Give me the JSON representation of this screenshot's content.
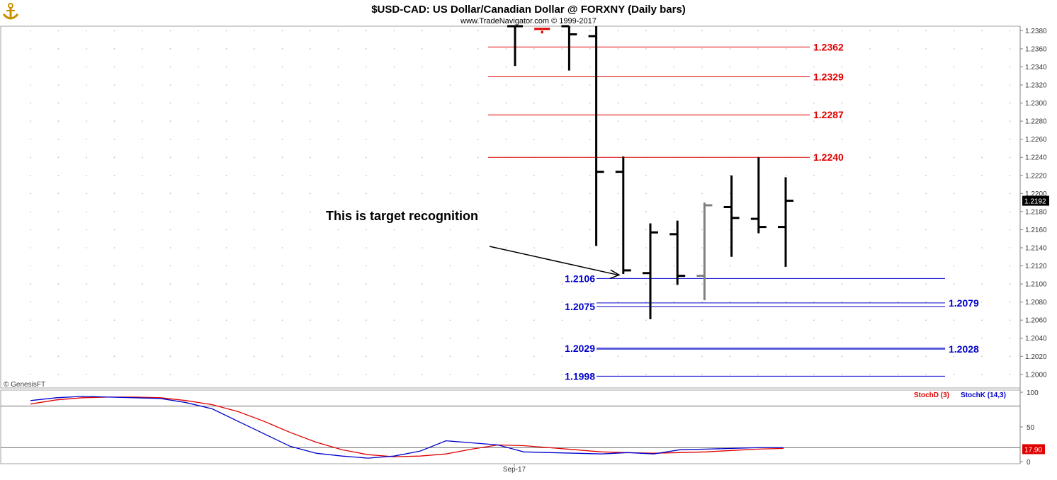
{
  "header": {
    "title": "$USD-CAD:  US Dollar/Canadian Dollar @ FORXNY  (Daily bars)",
    "copyright": "www.TradeNavigator.com © 1999-2017",
    "watermark": "© GenesisFT",
    "logo_icon": "anchor-logo-icon"
  },
  "chart_data": [
    {
      "type": "ohlc",
      "ylim": [
        1.1985,
        1.2385
      ],
      "y_ticks": [
        1.2,
        1.202,
        1.204,
        1.206,
        1.208,
        1.21,
        1.212,
        1.214,
        1.216,
        1.218,
        1.22,
        1.222,
        1.224,
        1.226,
        1.228,
        1.23,
        1.232,
        1.234,
        1.236,
        1.238
      ],
      "y_tick_labels": [
        "1.2000",
        "1.2020",
        "1.2040",
        "1.2060",
        "1.2080",
        "1.2100",
        "1.2120",
        "1.2140",
        "1.2160",
        "1.2180",
        "1.2200",
        "1.2220",
        "1.2240",
        "1.2260",
        "1.2280",
        "1.2300",
        "1.2320",
        "1.2340",
        "1.2360",
        "1.2380"
      ],
      "last_price_label": "1.2192",
      "x_tick_labels": [
        "Sep-17"
      ],
      "bars": [
        {
          "o": 1.2385,
          "h": 1.2385,
          "l": 1.2341,
          "c": 1.2385,
          "color": "#000000"
        },
        {
          "o": 1.2382,
          "h": 1.238,
          "l": 1.2377,
          "c": 1.2382,
          "color": "#e00000"
        },
        {
          "o": 1.2385,
          "h": 1.2385,
          "l": 1.2336,
          "c": 1.2376,
          "color": "#000000"
        },
        {
          "o": 1.2374,
          "h": 1.2385,
          "l": 1.2142,
          "c": 1.2224,
          "color": "#000000"
        },
        {
          "o": 1.2224,
          "h": 1.2241,
          "l": 1.2111,
          "c": 1.2115,
          "color": "#000000"
        },
        {
          "o": 1.2112,
          "h": 1.2167,
          "l": 1.2061,
          "c": 1.2157,
          "color": "#000000"
        },
        {
          "o": 1.2155,
          "h": 1.217,
          "l": 1.2099,
          "c": 1.2109,
          "color": "#000000"
        },
        {
          "o": 1.2109,
          "h": 1.219,
          "l": 1.2082,
          "c": 1.2187,
          "color": "#808080"
        },
        {
          "o": 1.2185,
          "h": 1.222,
          "l": 1.213,
          "c": 1.2173,
          "color": "#000000"
        },
        {
          "o": 1.2172,
          "h": 1.224,
          "l": 1.2156,
          "c": 1.2163,
          "color": "#000000"
        },
        {
          "o": 1.2163,
          "h": 1.2218,
          "l": 1.2119,
          "c": 1.2192,
          "color": "#000000"
        }
      ],
      "levels": [
        {
          "label": "1.2362",
          "value": 1.2362,
          "color": "#e00000"
        },
        {
          "label": "1.2329",
          "value": 1.2329,
          "color": "#e00000"
        },
        {
          "label": "1.2287",
          "value": 1.2287,
          "color": "#e00000"
        },
        {
          "label": "1.2240",
          "value": 1.224,
          "color": "#e00000"
        },
        {
          "label": "1.2106",
          "value": 1.2106,
          "color": "#0000cc"
        },
        {
          "label": "1.2079",
          "value": 1.2079,
          "color": "#0000cc"
        },
        {
          "label": "1.2075",
          "value": 1.2075,
          "color": "#0000cc"
        },
        {
          "label": "1.2029",
          "value": 1.2029,
          "color": "#0000cc"
        },
        {
          "label": "1.2028",
          "value": 1.2028,
          "color": "#0000cc"
        },
        {
          "label": "1.1998",
          "value": 1.1998,
          "color": "#0000cc"
        }
      ],
      "annotation": {
        "text": "This is target recognition",
        "arrow_to_value": 1.211
      }
    },
    {
      "type": "line",
      "ylim": [
        0,
        100
      ],
      "y_tick_labels": [
        "100",
        "50",
        "0"
      ],
      "reference_lines": [
        80,
        20
      ],
      "last_value_label": "17.90",
      "series": [
        {
          "name": "StochD (3)",
          "color": "#e00000",
          "values": [
            83,
            89,
            92,
            93,
            93,
            92,
            88,
            82,
            72,
            58,
            42,
            28,
            17,
            10,
            7,
            8,
            11,
            18,
            24,
            23,
            20,
            17,
            14,
            13,
            12,
            13,
            14,
            16,
            18,
            19
          ]
        },
        {
          "name": "StochK (14,3)",
          "color": "#0000cc",
          "values": [
            88,
            92,
            94,
            93,
            92,
            91,
            85,
            76,
            58,
            40,
            22,
            12,
            8,
            5,
            8,
            15,
            30,
            27,
            24,
            14,
            13,
            12,
            11,
            13,
            11,
            17,
            18,
            19,
            20,
            20
          ]
        }
      ]
    }
  ]
}
